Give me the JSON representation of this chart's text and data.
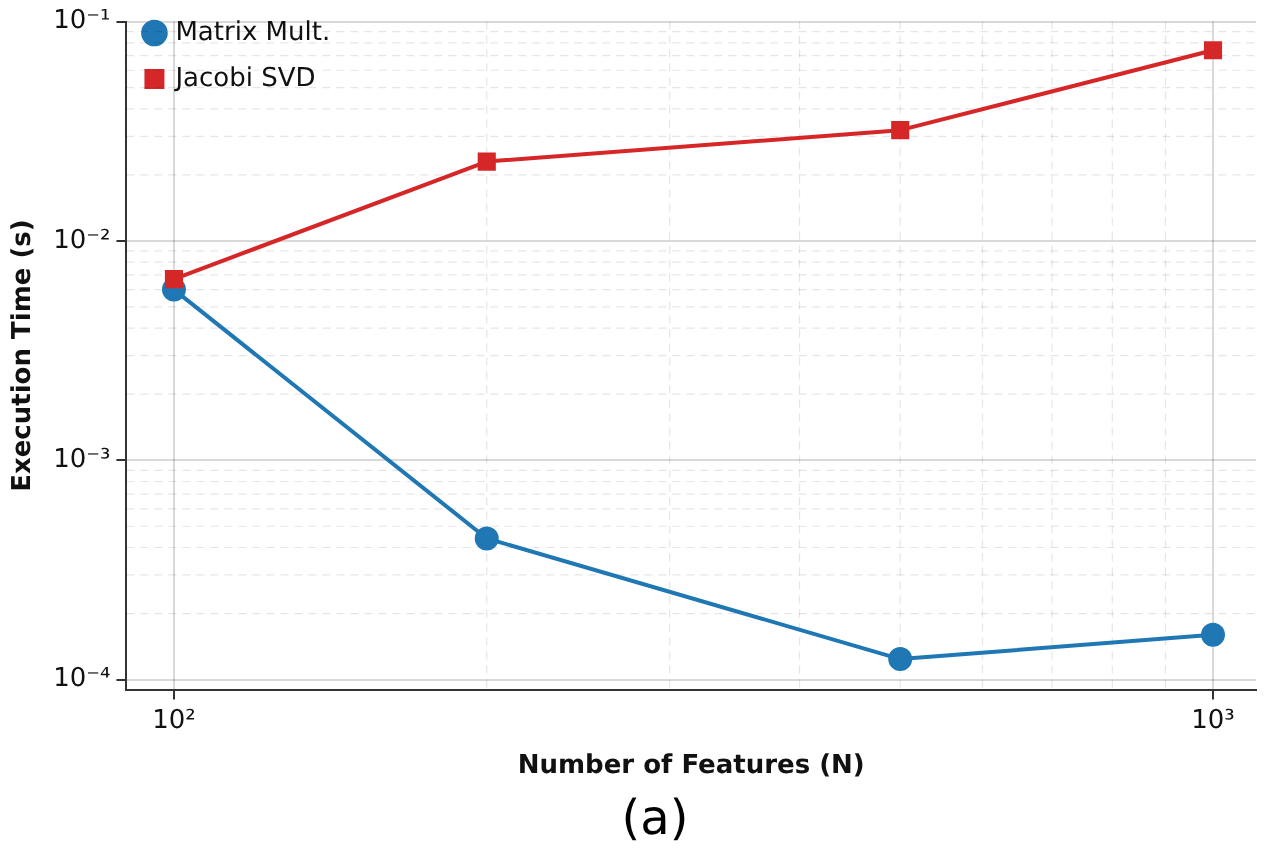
{
  "chart_data": {
    "type": "line",
    "xlabel": "Number of Features (N)",
    "ylabel": "Execution Time (s)",
    "x": [
      100,
      200,
      500,
      1000
    ],
    "series": [
      {
        "name": "Matrix Mult.",
        "color": "#1f77b4",
        "marker": "circle",
        "values": [
          0.006,
          0.00044,
          0.000124,
          0.00016
        ]
      },
      {
        "name": "Jacobi SVD",
        "color": "#d62728",
        "marker": "square",
        "values": [
          0.0067,
          0.023,
          0.032,
          0.074
        ]
      }
    ],
    "log": "xy",
    "xlim": [
      90,
      1100
    ],
    "ylim": [
      9e-05,
      0.1
    ],
    "xticks": [
      {
        "value": 100,
        "label": "10²"
      },
      {
        "value": 1000,
        "label": "10³"
      }
    ],
    "yticks": [
      {
        "value": 0.0001,
        "label": "10⁻⁴"
      },
      {
        "value": 0.001,
        "label": "10⁻³"
      },
      {
        "value": 0.01,
        "label": "10⁻²"
      },
      {
        "value": 0.1,
        "label": "10⁻¹"
      }
    ],
    "grid": true,
    "legend": "top left",
    "line_style": "solid",
    "annotations": [
      "(a)"
    ]
  }
}
